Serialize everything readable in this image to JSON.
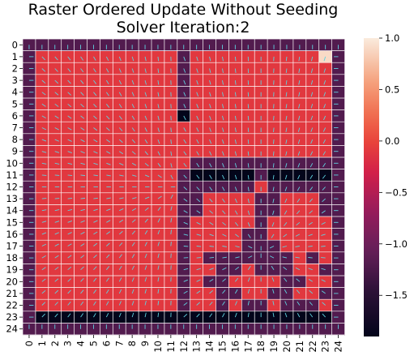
{
  "chart_data": {
    "type": "heatmap",
    "title": "Raster Ordered Update Without Seeding",
    "subtitle": "Solver Iteration:2",
    "x_ticks": [
      "0",
      "1",
      "2",
      "3",
      "4",
      "5",
      "6",
      "7",
      "8",
      "9",
      "10",
      "11",
      "12",
      "13",
      "14",
      "15",
      "16",
      "17",
      "18",
      "19",
      "20",
      "21",
      "22",
      "23",
      "24"
    ],
    "y_ticks": [
      "0",
      "1",
      "2",
      "3",
      "4",
      "5",
      "6",
      "7",
      "8",
      "9",
      "10",
      "11",
      "12",
      "13",
      "14",
      "15",
      "16",
      "17",
      "18",
      "19",
      "20",
      "21",
      "22",
      "23",
      "24"
    ],
    "colorbar": {
      "vmin": -1.9,
      "vmax": 1.0,
      "ticks": [
        1.0,
        0.5,
        0.0,
        -0.5,
        -1.0,
        -1.5
      ],
      "tick_labels": [
        "1.0",
        "0.5",
        "0.0",
        "−0.5",
        "−1.0",
        "−1.5"
      ],
      "colormap": "rocket"
    },
    "grid": true,
    "grid_color": "#ffffff",
    "vector_color": "#5fd3e0",
    "values": [
      [
        -1.2,
        -1.2,
        -1.2,
        -1.2,
        -1.2,
        -1.2,
        -1.2,
        -1.2,
        -1.2,
        -1.2,
        -1.2,
        -1.2,
        -1.2,
        -1.2,
        -1.2,
        -1.2,
        -1.2,
        -1.2,
        -1.2,
        -1.2,
        -1.2,
        -1.2,
        -1.2,
        -1.2,
        -1.2
      ],
      [
        -1.2,
        -0.1,
        -0.1,
        -0.1,
        -0.1,
        -0.1,
        -0.1,
        -0.1,
        -0.1,
        -0.1,
        -0.1,
        -0.1,
        -1.2,
        -0.1,
        -0.1,
        -0.1,
        -0.1,
        -0.1,
        -0.1,
        -0.1,
        -0.1,
        -0.1,
        -0.1,
        0.9,
        -1.2
      ],
      [
        -1.2,
        -0.1,
        -0.1,
        -0.1,
        -0.1,
        -0.1,
        -0.1,
        -0.1,
        -0.1,
        -0.1,
        -0.1,
        -0.1,
        -1.2,
        -0.1,
        -0.1,
        -0.1,
        -0.1,
        -0.1,
        -0.1,
        -0.1,
        -0.1,
        -0.1,
        -0.1,
        -0.1,
        -1.2
      ],
      [
        -1.2,
        -0.1,
        -0.1,
        -0.1,
        -0.1,
        -0.1,
        -0.1,
        -0.1,
        -0.1,
        -0.1,
        -0.1,
        -0.1,
        -1.2,
        -0.1,
        -0.1,
        -0.1,
        -0.1,
        -0.1,
        -0.1,
        -0.1,
        -0.1,
        -0.1,
        -0.1,
        -0.1,
        -1.2
      ],
      [
        -1.2,
        -0.1,
        -0.1,
        -0.1,
        -0.1,
        -0.1,
        -0.1,
        -0.1,
        -0.1,
        -0.1,
        -0.1,
        -0.1,
        -1.2,
        -0.1,
        -0.1,
        -0.1,
        -0.1,
        -0.1,
        -0.1,
        -0.1,
        -0.1,
        -0.1,
        -0.1,
        -0.1,
        -1.2
      ],
      [
        -1.2,
        -0.1,
        -0.1,
        -0.1,
        -0.1,
        -0.1,
        -0.1,
        -0.1,
        -0.1,
        -0.1,
        -0.1,
        -0.1,
        -1.2,
        -0.1,
        -0.1,
        -0.1,
        -0.1,
        -0.1,
        -0.1,
        -0.1,
        -0.1,
        -0.1,
        -0.1,
        -0.1,
        -1.2
      ],
      [
        -1.2,
        -0.1,
        -0.1,
        -0.1,
        -0.1,
        -0.1,
        -0.1,
        -0.1,
        -0.1,
        -0.1,
        -0.1,
        -0.1,
        -1.9,
        -0.1,
        -0.1,
        -0.1,
        -0.1,
        -0.1,
        -0.1,
        -0.1,
        -0.1,
        -0.1,
        -0.1,
        -0.1,
        -1.2
      ],
      [
        -1.2,
        -0.1,
        -0.1,
        -0.1,
        -0.1,
        -0.1,
        -0.1,
        -0.1,
        -0.1,
        -0.1,
        -0.1,
        -0.1,
        -0.1,
        -0.1,
        -0.1,
        -0.1,
        -0.1,
        -0.1,
        -0.1,
        -0.1,
        -0.1,
        -0.1,
        -0.1,
        -0.1,
        -1.2
      ],
      [
        -1.2,
        -0.1,
        -0.1,
        -0.1,
        -0.1,
        -0.1,
        -0.1,
        -0.1,
        -0.1,
        -0.1,
        -0.1,
        -0.1,
        -0.1,
        -0.1,
        -0.1,
        -0.1,
        -0.1,
        -0.1,
        -0.1,
        -0.1,
        -0.1,
        -0.1,
        -0.1,
        -0.1,
        -1.2
      ],
      [
        -1.2,
        -0.1,
        -0.1,
        -0.1,
        -0.1,
        -0.1,
        -0.1,
        -0.1,
        -0.1,
        -0.1,
        -0.1,
        -0.1,
        -0.1,
        -0.1,
        -0.1,
        -0.1,
        -0.1,
        -0.1,
        -0.1,
        -0.1,
        -0.1,
        -0.1,
        -0.1,
        -0.1,
        -1.2
      ],
      [
        -1.2,
        -0.1,
        -0.1,
        -0.1,
        -0.1,
        -0.1,
        -0.1,
        -0.1,
        -0.1,
        -0.1,
        -0.1,
        -0.1,
        -0.1,
        -1.2,
        -1.2,
        -1.2,
        -1.2,
        -1.2,
        -1.2,
        -1.2,
        -1.2,
        -1.2,
        -1.2,
        -1.2,
        -1.2
      ],
      [
        -1.2,
        -0.1,
        -0.1,
        -0.1,
        -0.1,
        -0.1,
        -0.1,
        -0.1,
        -0.1,
        -0.1,
        -0.1,
        -0.1,
        -1.2,
        -1.9,
        -1.9,
        -1.9,
        -1.9,
        -1.9,
        -1.2,
        -1.9,
        -1.9,
        -1.9,
        -1.9,
        -1.9,
        -1.2
      ],
      [
        -1.2,
        -0.1,
        -0.1,
        -0.1,
        -0.1,
        -0.1,
        -0.1,
        -0.1,
        -0.1,
        -0.1,
        -0.1,
        -0.1,
        -1.2,
        -1.2,
        -1.2,
        -1.2,
        -1.2,
        -1.2,
        -0.1,
        -1.2,
        -1.2,
        -1.2,
        -1.2,
        -1.2,
        -1.2
      ],
      [
        -1.2,
        -0.1,
        -0.1,
        -0.1,
        -0.1,
        -0.1,
        -0.1,
        -0.1,
        -0.1,
        -0.1,
        -0.1,
        -0.1,
        -1.2,
        -1.2,
        -0.1,
        -0.1,
        -0.1,
        -0.1,
        -1.2,
        -1.2,
        -0.1,
        -0.1,
        -0.1,
        -1.2,
        -1.2
      ],
      [
        -1.2,
        -0.1,
        -0.1,
        -0.1,
        -0.1,
        -0.1,
        -0.1,
        -0.1,
        -0.1,
        -0.1,
        -0.1,
        -0.1,
        -1.2,
        -1.2,
        -0.1,
        -0.1,
        -0.1,
        -0.1,
        -1.2,
        -1.2,
        -0.1,
        -0.1,
        -0.1,
        -1.2,
        -1.2
      ],
      [
        -1.2,
        -0.1,
        -0.1,
        -0.1,
        -0.1,
        -0.1,
        -0.1,
        -0.1,
        -0.1,
        -0.1,
        -0.1,
        -0.1,
        -1.2,
        -0.1,
        -0.1,
        -0.1,
        -0.1,
        -0.1,
        -1.2,
        -0.1,
        -0.1,
        -0.1,
        -0.1,
        -0.1,
        -1.2
      ],
      [
        -1.2,
        -0.1,
        -0.1,
        -0.1,
        -0.1,
        -0.1,
        -0.1,
        -0.1,
        -0.1,
        -0.1,
        -0.1,
        -0.1,
        -1.2,
        -0.1,
        -0.1,
        -0.1,
        -0.1,
        -1.2,
        -1.2,
        -0.1,
        -0.1,
        -0.1,
        -0.1,
        -0.1,
        -1.2
      ],
      [
        -1.2,
        -0.1,
        -0.1,
        -0.1,
        -0.1,
        -0.1,
        -0.1,
        -0.1,
        -0.1,
        -0.1,
        -0.1,
        -0.1,
        -1.2,
        -0.1,
        -0.1,
        -0.1,
        -0.1,
        -1.2,
        -1.2,
        -1.2,
        -0.1,
        -0.1,
        -0.1,
        -0.1,
        -1.2
      ],
      [
        -1.2,
        -0.1,
        -0.1,
        -0.1,
        -0.1,
        -0.1,
        -0.1,
        -0.1,
        -0.1,
        -0.1,
        -0.1,
        -0.1,
        -1.2,
        -0.1,
        -1.2,
        -1.2,
        -1.2,
        -1.2,
        -1.2,
        -1.2,
        -1.2,
        -0.1,
        -1.2,
        -0.1,
        -1.2
      ],
      [
        -1.2,
        -0.1,
        -0.1,
        -0.1,
        -0.1,
        -0.1,
        -0.1,
        -0.1,
        -0.1,
        -0.1,
        -0.1,
        -0.1,
        -1.2,
        -0.1,
        -0.1,
        -1.2,
        -1.2,
        -0.1,
        -1.2,
        -1.2,
        -1.2,
        -0.1,
        -0.1,
        -1.2,
        -1.2
      ],
      [
        -1.2,
        -0.1,
        -0.1,
        -0.1,
        -0.1,
        -0.1,
        -0.1,
        -0.1,
        -0.1,
        -0.1,
        -0.1,
        -0.1,
        -1.2,
        -0.1,
        -1.2,
        -1.2,
        -0.1,
        -0.1,
        -0.1,
        -0.1,
        -1.2,
        -1.2,
        -0.1,
        -0.1,
        -1.2
      ],
      [
        -1.2,
        -0.1,
        -0.1,
        -0.1,
        -0.1,
        -0.1,
        -0.1,
        -0.1,
        -0.1,
        -0.1,
        -0.1,
        -0.1,
        -1.2,
        -0.1,
        -0.1,
        -1.2,
        -1.2,
        -0.1,
        -0.1,
        -1.2,
        -1.2,
        -0.1,
        -0.1,
        -1.2,
        -1.2
      ],
      [
        -1.2,
        -0.1,
        -0.1,
        -0.1,
        -0.1,
        -0.1,
        -0.1,
        -0.1,
        -0.1,
        -0.1,
        -0.1,
        -0.1,
        -1.2,
        -0.1,
        -0.1,
        -1.2,
        -0.1,
        -1.2,
        -1.2,
        -0.1,
        -1.2,
        -1.2,
        -1.2,
        -0.1,
        -1.2
      ],
      [
        -1.2,
        -1.9,
        -1.9,
        -1.9,
        -1.9,
        -1.9,
        -1.9,
        -1.9,
        -1.9,
        -1.9,
        -1.9,
        -1.9,
        -1.9,
        -1.9,
        -1.9,
        -1.9,
        -1.9,
        -1.9,
        -1.9,
        -1.9,
        -1.9,
        -1.9,
        -1.9,
        -1.9,
        -1.2
      ],
      [
        -1.2,
        -1.2,
        -1.2,
        -1.2,
        -1.2,
        -1.2,
        -1.2,
        -1.2,
        -1.2,
        -1.2,
        -1.2,
        -1.2,
        -1.2,
        -1.2,
        -1.2,
        -1.2,
        -1.2,
        -1.2,
        -1.2,
        -1.2,
        -1.2,
        -1.2,
        -1.2,
        -1.2,
        -1.2
      ]
    ]
  }
}
